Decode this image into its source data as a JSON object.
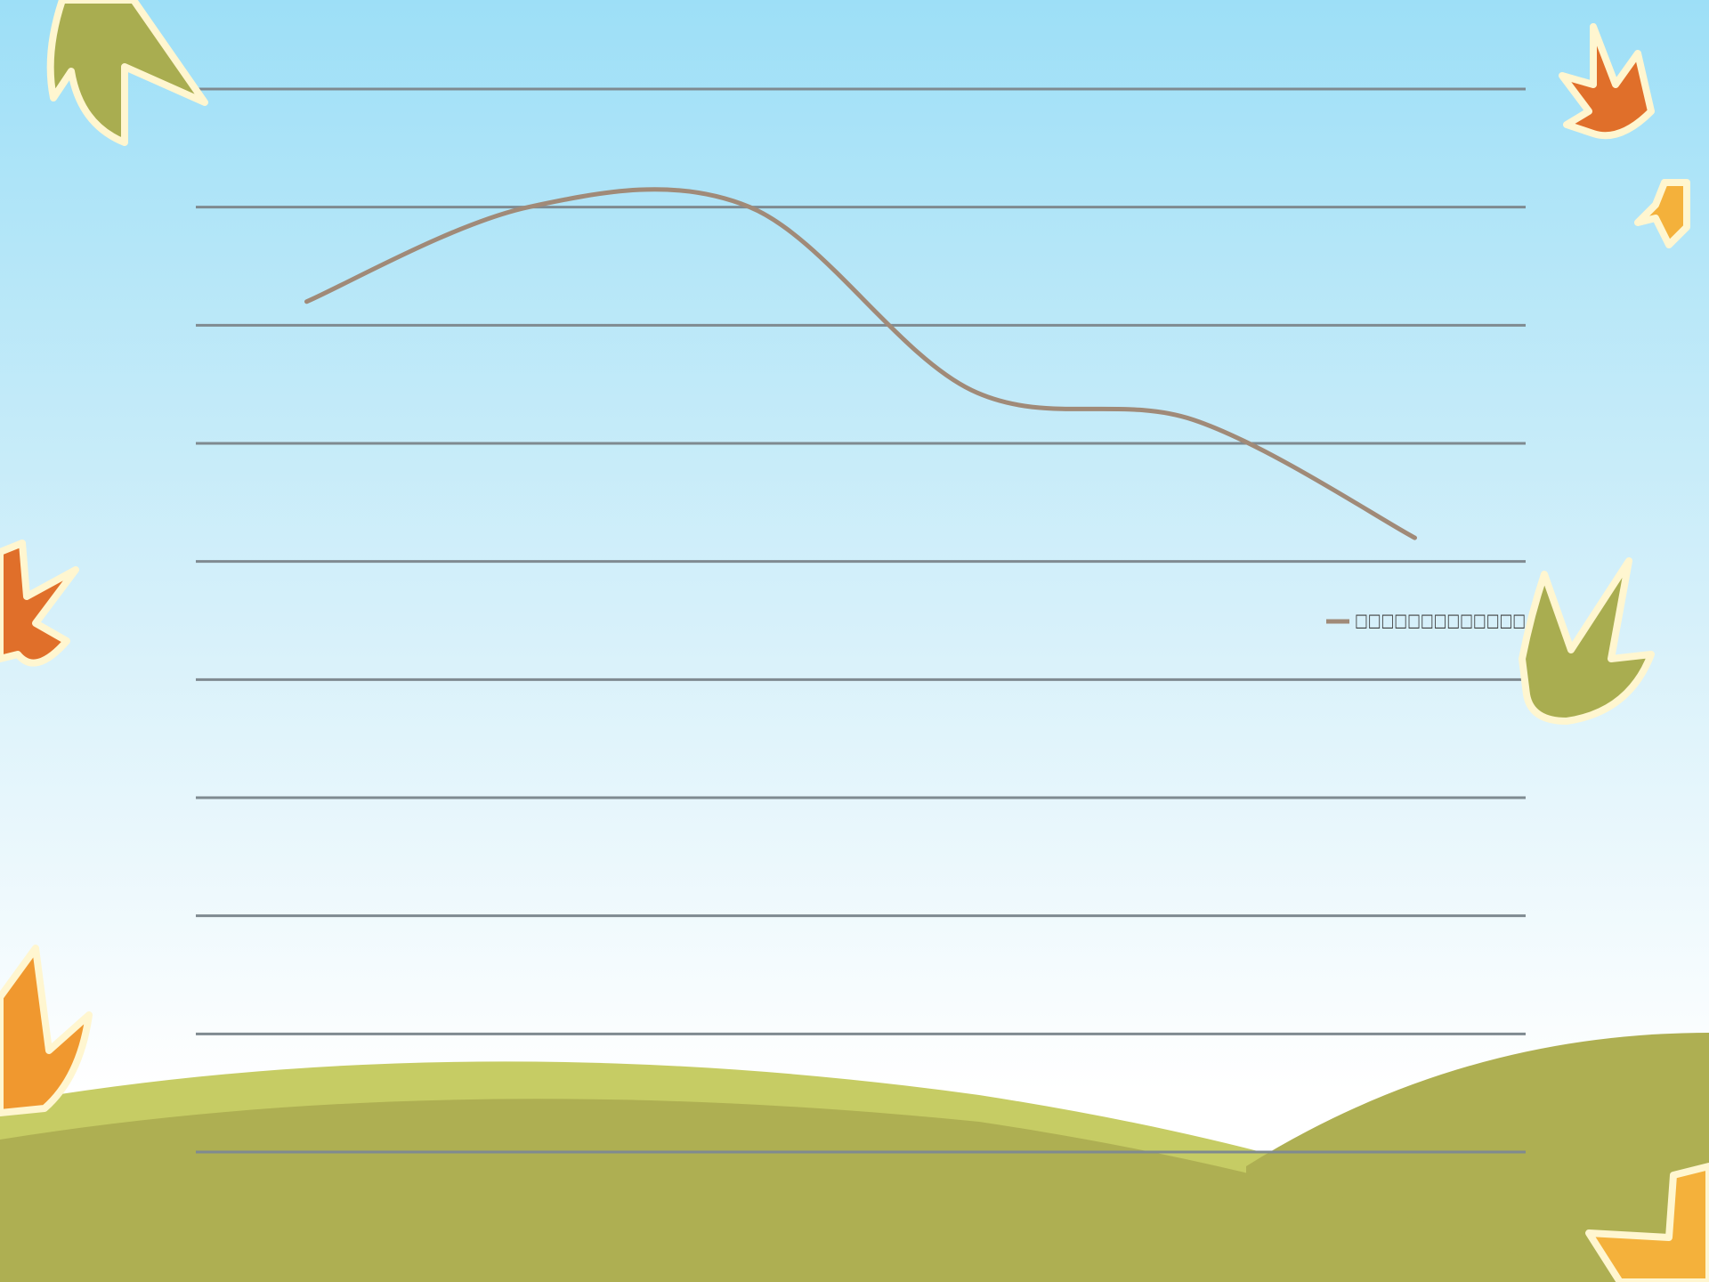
{
  "chart_data": {
    "type": "line",
    "categories": [
      null,
      null,
      null,
      null,
      null,
      null
    ],
    "series": [
      {
        "name": "□□□□□□□□□□□□□",
        "color": "#a08a78",
        "values": [
          7.2,
          8.0,
          8.0,
          6.45,
          6.2,
          5.2
        ]
      }
    ],
    "ylim": [
      0,
      9
    ],
    "yticks": [
      0,
      1,
      2,
      3,
      4,
      5,
      6,
      7,
      8,
      9
    ],
    "grid": true,
    "smooth": true,
    "legend": "right"
  }
}
